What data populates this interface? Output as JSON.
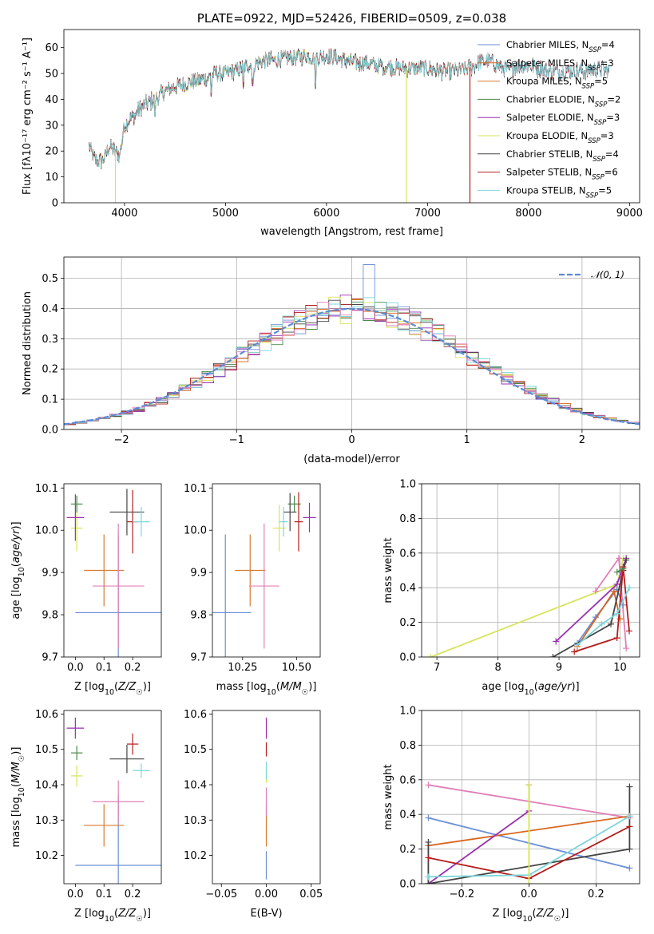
{
  "colors": {
    "chab_miles": "#6b8fd6",
    "salp_miles": "#d9661f",
    "krou_miles": "#d87a2e",
    "chab_elodie": "#4a8a4a",
    "salp_elodie": "#9a2fb0",
    "krou_elodie": "#d7e45a",
    "chab_stelib": "#444444",
    "salp_stelib": "#b51c1c",
    "krou_stelib": "#7dd6dc",
    "extra_pink": "#e080b8",
    "gaussian": "#5b8bd9"
  },
  "chart_data": [
    {
      "id": "spectrum",
      "type": "line",
      "title": "PLATE=0922, MJD=52426, FIBERID=0509, z=0.038",
      "xlabel": "wavelength [Angstrom, rest frame]",
      "ylabel": "Flux [f_λ10^-17 erg cm^-2 s^-1 A^-1]",
      "xlim": [
        3400,
        9100
      ],
      "ylim": [
        0,
        67
      ],
      "xticks": [
        "4000",
        "5000",
        "6000",
        "7000",
        "8000",
        "9000"
      ],
      "yticks": [
        "0",
        "10",
        "20",
        "30",
        "40",
        "50",
        "60"
      ],
      "legend": [
        {
          "label": "Chabrier MILES, N_SSP=4",
          "color": "chab_miles"
        },
        {
          "label": "Salpeter MILES, N_SSP=3",
          "color": "salp_miles"
        },
        {
          "label": "Kroupa MILES, N_SSP=5",
          "color": "krou_miles"
        },
        {
          "label": "Chabrier ELODIE, N_SSP=2",
          "color": "chab_elodie"
        },
        {
          "label": "Salpeter ELODIE, N_SSP=3",
          "color": "salp_elodie"
        },
        {
          "label": "Kroupa ELODIE, N_SSP=3",
          "color": "krou_elodie"
        },
        {
          "label": "Chabrier STELIB, N_SSP=4",
          "color": "chab_stelib"
        },
        {
          "label": "Salpeter STELIB, N_SSP=6",
          "color": "salp_stelib"
        },
        {
          "label": "Kroupa STELIB, N_SSP=5",
          "color": "krou_stelib"
        }
      ],
      "continuum": [
        [
          3650,
          22
        ],
        [
          3700,
          17
        ],
        [
          3750,
          16
        ],
        [
          3800,
          17
        ],
        [
          3850,
          22
        ],
        [
          3900,
          20
        ],
        [
          3950,
          18
        ],
        [
          4000,
          30
        ],
        [
          4100,
          34
        ],
        [
          4200,
          38
        ],
        [
          4300,
          40
        ],
        [
          4400,
          43
        ],
        [
          4500,
          45
        ],
        [
          4600,
          46
        ],
        [
          4700,
          47
        ],
        [
          4800,
          48
        ],
        [
          4900,
          50
        ],
        [
          5000,
          50
        ],
        [
          5100,
          51
        ],
        [
          5200,
          53
        ],
        [
          5300,
          54
        ],
        [
          5400,
          55
        ],
        [
          5500,
          55
        ],
        [
          5600,
          56
        ],
        [
          5700,
          56
        ],
        [
          5800,
          57
        ],
        [
          5900,
          56
        ],
        [
          6000,
          57
        ],
        [
          6100,
          56
        ],
        [
          6200,
          55
        ],
        [
          6300,
          54
        ],
        [
          6400,
          54
        ],
        [
          6500,
          53
        ],
        [
          6600,
          53
        ],
        [
          6700,
          52
        ],
        [
          6800,
          52
        ],
        [
          6900,
          52
        ],
        [
          7000,
          52
        ],
        [
          7100,
          51
        ],
        [
          7200,
          51
        ],
        [
          7300,
          51
        ],
        [
          7400,
          52
        ],
        [
          7500,
          54
        ],
        [
          7600,
          55
        ],
        [
          7700,
          53
        ],
        [
          7800,
          51
        ],
        [
          7900,
          53
        ],
        [
          8000,
          53
        ],
        [
          8100,
          52
        ],
        [
          8200,
          51
        ],
        [
          8300,
          51
        ],
        [
          8400,
          51
        ],
        [
          8500,
          51
        ],
        [
          8600,
          51
        ],
        [
          8700,
          52
        ],
        [
          8800,
          51
        ]
      ],
      "absorption_lines": [
        [
          3934,
          26
        ],
        [
          3968,
          25
        ],
        [
          4101,
          32
        ],
        [
          4300,
          33
        ],
        [
          4861,
          40
        ],
        [
          5175,
          44
        ],
        [
          5270,
          45
        ],
        [
          5892,
          44
        ],
        [
          6563,
          49
        ]
      ],
      "dropouts": [
        {
          "x": 3910,
          "color": "krou_elodie"
        },
        {
          "x": 6790,
          "color": "krou_elodie"
        },
        {
          "x": 7420,
          "color": "salp_stelib"
        }
      ]
    },
    {
      "id": "residuals",
      "type": "histogram",
      "xlabel": "(data-model)/error",
      "ylabel": "Normed distribution",
      "xlim": [
        -2.5,
        2.5
      ],
      "ylim": [
        0,
        0.57
      ],
      "xticks": [
        "-2",
        "-1",
        "0",
        "1",
        "2"
      ],
      "yticks": [
        "0.0",
        "0.1",
        "0.2",
        "0.3",
        "0.4",
        "0.5"
      ],
      "legend": [
        {
          "label": "N(0,1)",
          "color": "gaussian"
        }
      ],
      "bin_width": 0.1
    },
    {
      "id": "age_vs_Z",
      "type": "scatter",
      "xlabel": "Z [log10(Z/Z☉)]",
      "ylabel": "age [log10(age/yr)]",
      "xlim": [
        -0.04,
        0.3
      ],
      "ylim": [
        9.7,
        10.11
      ],
      "xticks": [
        "0.0",
        "0.1",
        "0.2"
      ],
      "yticks": [
        "9.7",
        "9.8",
        "9.9",
        "10.0",
        "10.1"
      ],
      "points": [
        {
          "color": "chab_miles",
          "x": 0.15,
          "xerr": 0.15,
          "y": 9.805,
          "yerr": 0.185
        },
        {
          "color": "krou_miles",
          "x": 0.1,
          "xerr": 0.07,
          "y": 9.905,
          "yerr": 0.085
        },
        {
          "color": "extra_pink",
          "x": 0.15,
          "xerr": 0.09,
          "y": 9.868,
          "yerr": 0.148
        },
        {
          "color": "krou_elodie",
          "x": 0.005,
          "xerr": 0.02,
          "y": 10.005,
          "yerr": 0.055
        },
        {
          "color": "salp_elodie",
          "x": 0.0,
          "xerr": 0.03,
          "y": 10.03,
          "yerr": 0.055
        },
        {
          "color": "chab_elodie",
          "x": 0.005,
          "xerr": 0.02,
          "y": 10.062,
          "yerr": 0.02
        },
        {
          "color": "chab_stelib",
          "x": 0.18,
          "xerr": 0.06,
          "y": 10.043,
          "yerr": 0.055
        },
        {
          "color": "salp_stelib",
          "x": 0.2,
          "xerr": 0.02,
          "y": 10.02,
          "yerr": 0.075
        },
        {
          "color": "krou_stelib",
          "x": 0.23,
          "xerr": 0.03,
          "y": 10.02,
          "yerr": 0.035
        }
      ]
    },
    {
      "id": "age_vs_mass",
      "type": "scatter",
      "xlabel": "mass [log10(M/M☉)]",
      "ylabel": "",
      "xlim": [
        10.11,
        10.61
      ],
      "ylim": [
        9.7,
        10.11
      ],
      "xticks": [
        "10.25",
        "10.50"
      ],
      "yticks": [
        "9.7",
        "9.8",
        "9.9",
        "10.0",
        "10.1"
      ],
      "points": [
        {
          "color": "chab_miles",
          "x": 10.17,
          "xerr": 0.12,
          "y": 9.805,
          "yerr": 0.185
        },
        {
          "color": "krou_miles",
          "x": 10.285,
          "xerr": 0.07,
          "y": 9.905,
          "yerr": 0.085
        },
        {
          "color": "extra_pink",
          "x": 10.35,
          "xerr": 0.07,
          "y": 9.868,
          "yerr": 0.148
        },
        {
          "color": "krou_elodie",
          "x": 10.42,
          "xerr": 0.03,
          "y": 10.005,
          "yerr": 0.055
        },
        {
          "color": "salp_elodie",
          "x": 10.56,
          "xerr": 0.03,
          "y": 10.03,
          "yerr": 0.035
        },
        {
          "color": "chab_elodie",
          "x": 10.49,
          "xerr": 0.03,
          "y": 10.062,
          "yerr": 0.02
        },
        {
          "color": "chab_stelib",
          "x": 10.47,
          "xerr": 0.03,
          "y": 10.043,
          "yerr": 0.045
        },
        {
          "color": "salp_stelib",
          "x": 10.51,
          "xerr": 0.02,
          "y": 10.02,
          "yerr": 0.07
        },
        {
          "color": "krou_stelib",
          "x": 10.44,
          "xerr": 0.02,
          "y": 10.02,
          "yerr": 0.035
        }
      ]
    },
    {
      "id": "massweight_vs_age",
      "type": "line",
      "xlabel": "age [log10(age/yr)]",
      "ylabel": "mass weight",
      "xlim": [
        6.75,
        10.32
      ],
      "ylim": [
        0,
        1.0
      ],
      "xticks": [
        "7",
        "8",
        "9",
        "10"
      ],
      "yticks": [
        "0.0",
        "0.2",
        "0.4",
        "0.6",
        "0.8",
        "1.0"
      ],
      "series": [
        {
          "color": "krou_elodie",
          "x": [
            6.9,
            9.95,
            10.05
          ],
          "y": [
            0.0,
            0.42,
            0.57
          ]
        },
        {
          "color": "extra_pink",
          "x": [
            9.6,
            9.98,
            10.1
          ],
          "y": [
            0.38,
            0.57,
            0.05
          ]
        },
        {
          "color": "salp_elodie",
          "x": [
            8.95,
            9.95,
            10.1
          ],
          "y": [
            0.09,
            0.42,
            0.57
          ]
        },
        {
          "color": "chab_miles",
          "x": [
            9.3,
            9.6,
            9.95,
            10.05
          ],
          "y": [
            0.08,
            0.23,
            0.39,
            0.3
          ]
        },
        {
          "color": "salp_miles",
          "x": [
            9.3,
            9.9,
            10.0
          ],
          "y": [
            0.06,
            0.38,
            0.22
          ]
        },
        {
          "color": "chab_stelib",
          "x": [
            8.9,
            9.85,
            10.05,
            10.1
          ],
          "y": [
            0.0,
            0.19,
            0.5,
            0.56
          ]
        },
        {
          "color": "salp_stelib",
          "x": [
            9.25,
            9.95,
            10.05,
            10.15
          ],
          "y": [
            0.03,
            0.11,
            0.52,
            0.15
          ]
        },
        {
          "color": "krou_stelib",
          "x": [
            9.3,
            9.7,
            9.95,
            10.15
          ],
          "y": [
            0.07,
            0.19,
            0.25,
            0.4
          ]
        },
        {
          "color": "chab_elodie",
          "x": [
            9.95,
            10.05
          ],
          "y": [
            0.49,
            0.51
          ]
        }
      ]
    },
    {
      "id": "mass_vs_Z",
      "type": "scatter",
      "xlabel": "Z [log10(Z/Z☉)]",
      "ylabel": "mass [log10(M/M☉)]",
      "xlim": [
        -0.04,
        0.3
      ],
      "ylim": [
        10.12,
        10.61
      ],
      "xticks": [
        "0.0",
        "0.1",
        "0.2"
      ],
      "yticks": [
        "10.2",
        "10.3",
        "10.4",
        "10.5",
        "10.6"
      ],
      "points": [
        {
          "color": "chab_miles",
          "x": 0.15,
          "xerr": 0.15,
          "y": 10.172,
          "yerr": 0.2
        },
        {
          "color": "krou_miles",
          "x": 0.1,
          "xerr": 0.07,
          "y": 10.285,
          "yerr": 0.06
        },
        {
          "color": "extra_pink",
          "x": 0.15,
          "xerr": 0.09,
          "y": 10.352,
          "yerr": 0.06
        },
        {
          "color": "krou_elodie",
          "x": 0.005,
          "xerr": 0.02,
          "y": 10.425,
          "yerr": 0.03
        },
        {
          "color": "salp_elodie",
          "x": 0.0,
          "xerr": 0.03,
          "y": 10.56,
          "yerr": 0.03
        },
        {
          "color": "chab_elodie",
          "x": 0.005,
          "xerr": 0.02,
          "y": 10.49,
          "yerr": 0.02
        },
        {
          "color": "chab_stelib",
          "x": 0.18,
          "xerr": 0.06,
          "y": 10.473,
          "yerr": 0.04
        },
        {
          "color": "salp_stelib",
          "x": 0.2,
          "xerr": 0.02,
          "y": 10.515,
          "yerr": 0.03
        },
        {
          "color": "krou_stelib",
          "x": 0.23,
          "xerr": 0.03,
          "y": 10.44,
          "yerr": 0.02
        }
      ]
    },
    {
      "id": "mass_vs_ebv",
      "type": "scatter",
      "xlabel": "E(B-V)",
      "ylabel": "",
      "xlim": [
        -0.06,
        0.06
      ],
      "ylim": [
        10.12,
        10.61
      ],
      "xticks": [
        "-0.05",
        "0.00",
        "0.05"
      ],
      "yticks": [
        "10.2",
        "10.3",
        "10.4",
        "10.5",
        "10.6"
      ],
      "points": [
        {
          "color": "chab_miles",
          "x": 0.0,
          "y": 10.172,
          "yerr": 0.04
        },
        {
          "color": "krou_miles",
          "x": 0.0,
          "y": 10.285,
          "yerr": 0.06
        },
        {
          "color": "extra_pink",
          "x": 0.0,
          "y": 10.352,
          "yerr": 0.04
        },
        {
          "color": "krou_elodie",
          "x": 0.0,
          "y": 10.425,
          "yerr": 0.02
        },
        {
          "color": "krou_stelib",
          "x": 0.0,
          "y": 10.44,
          "yerr": 0.025
        },
        {
          "color": "salp_elodie",
          "x": 0.0,
          "y": 10.56,
          "yerr": 0.03
        },
        {
          "color": "salp_stelib",
          "x": 0.0,
          "y": 10.5,
          "yerr": 0.02
        }
      ]
    },
    {
      "id": "massweight_vs_Z",
      "type": "line",
      "xlabel": "Z [log10(Z/Z☉)]",
      "ylabel": "mass weight",
      "xlim": [
        -0.32,
        0.33
      ],
      "ylim": [
        0,
        1.0
      ],
      "xticks": [
        "-0.2",
        "0.0",
        "0.2"
      ],
      "yticks": [
        "0.0",
        "0.2",
        "0.4",
        "0.6",
        "0.8",
        "1.0"
      ],
      "series": [
        {
          "color": "extra_pink",
          "x": [
            -0.3,
            0.3
          ],
          "y": [
            0.57,
            0.38
          ]
        },
        {
          "color": "chab_miles",
          "x": [
            -0.3,
            0.3
          ],
          "y": [
            0.38,
            0.09
          ]
        },
        {
          "color": "salp_miles",
          "x": [
            -0.3,
            0.3
          ],
          "y": [
            0.22,
            0.39
          ]
        },
        {
          "color": "salp_elodie",
          "x": [
            -0.3,
            0.0,
            0.0
          ],
          "y": [
            0.0,
            0.42,
            0.57
          ]
        },
        {
          "color": "chab_stelib",
          "x": [
            -0.3,
            -0.3,
            0.3,
            0.3
          ],
          "y": [
            0.24,
            0.0,
            0.2,
            0.56
          ]
        },
        {
          "color": "salp_stelib",
          "x": [
            -0.3,
            0.0,
            0.3
          ],
          "y": [
            0.15,
            0.03,
            0.33
          ]
        },
        {
          "color": "krou_stelib",
          "x": [
            -0.3,
            0.0,
            0.3
          ],
          "y": [
            0.04,
            0.05,
            0.39
          ]
        },
        {
          "color": "krou_elodie",
          "x": [
            0.0,
            0.0
          ],
          "y": [
            0.0,
            0.57
          ]
        }
      ]
    }
  ]
}
